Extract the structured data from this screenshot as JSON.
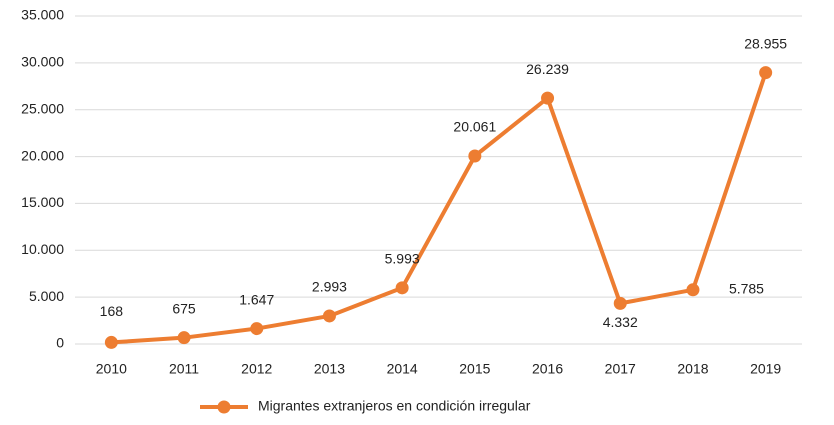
{
  "chart_data": {
    "type": "line",
    "categories": [
      "2010",
      "2011",
      "2012",
      "2013",
      "2014",
      "2015",
      "2016",
      "2017",
      "2018",
      "2019"
    ],
    "series": [
      {
        "name": "Migrantes extranjeros en condición irregular",
        "color": "#ed7d31",
        "values": [
          168,
          675,
          1647,
          2993,
          5993,
          20061,
          26239,
          4332,
          5785,
          28955
        ],
        "value_labels": [
          "168",
          "675",
          "1.647",
          "2.993",
          "5.993",
          "20.061",
          "26.239",
          "4.332",
          "5.785",
          "28.955"
        ]
      }
    ],
    "ylim": [
      0,
      35000
    ],
    "yticks": [
      {
        "value": 0,
        "label": "0"
      },
      {
        "value": 5000,
        "label": "5.000"
      },
      {
        "value": 10000,
        "label": "10.000"
      },
      {
        "value": 15000,
        "label": "15.000"
      },
      {
        "value": 20000,
        "label": "20.000"
      },
      {
        "value": 25000,
        "label": "25.000"
      },
      {
        "value": 30000,
        "label": "30.000"
      },
      {
        "value": 35000,
        "label": "35.000"
      }
    ],
    "grid": true,
    "legend": "bottom"
  }
}
